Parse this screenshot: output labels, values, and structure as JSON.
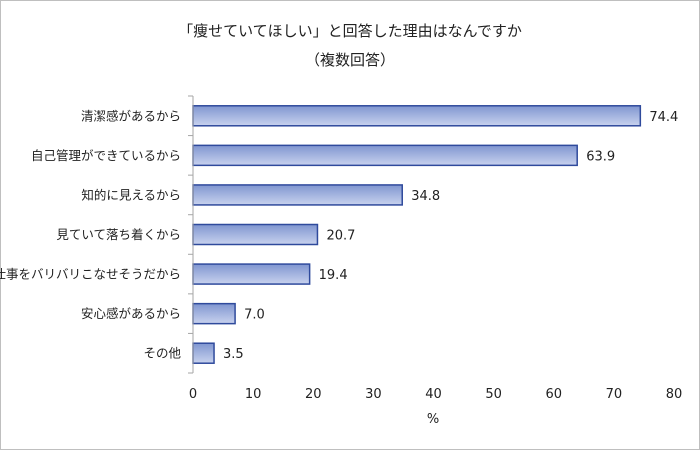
{
  "chart_data": {
    "type": "bar",
    "orientation": "horizontal",
    "title": "「痩せていてほしい」と回答した理由はなんですか",
    "subtitle": "（複数回答）",
    "categories": [
      "清潔感があるから",
      "自己管理ができているから",
      "知的に見えるから",
      "見ていて落ち着くから",
      "仕事をバリバリこなせそうだから",
      "安心感があるから",
      "その他"
    ],
    "values": [
      74.4,
      63.9,
      34.8,
      20.7,
      19.4,
      7.0,
      3.5
    ],
    "value_labels": [
      "74.4",
      "63.9",
      "34.8",
      "20.7",
      "19.4",
      "7.0",
      "3.5"
    ],
    "xlabel": "%",
    "ylabel": "",
    "xlim": [
      0,
      80
    ],
    "xticks": [
      0,
      10,
      20,
      30,
      40,
      50,
      60,
      70,
      80
    ],
    "grid": false,
    "legend": "none",
    "bar_fill_top": "#8096d0",
    "bar_fill_bottom": "#c8d2ee",
    "bar_stroke": "#2f4a9c",
    "axis_color": "#a6a6a6"
  }
}
